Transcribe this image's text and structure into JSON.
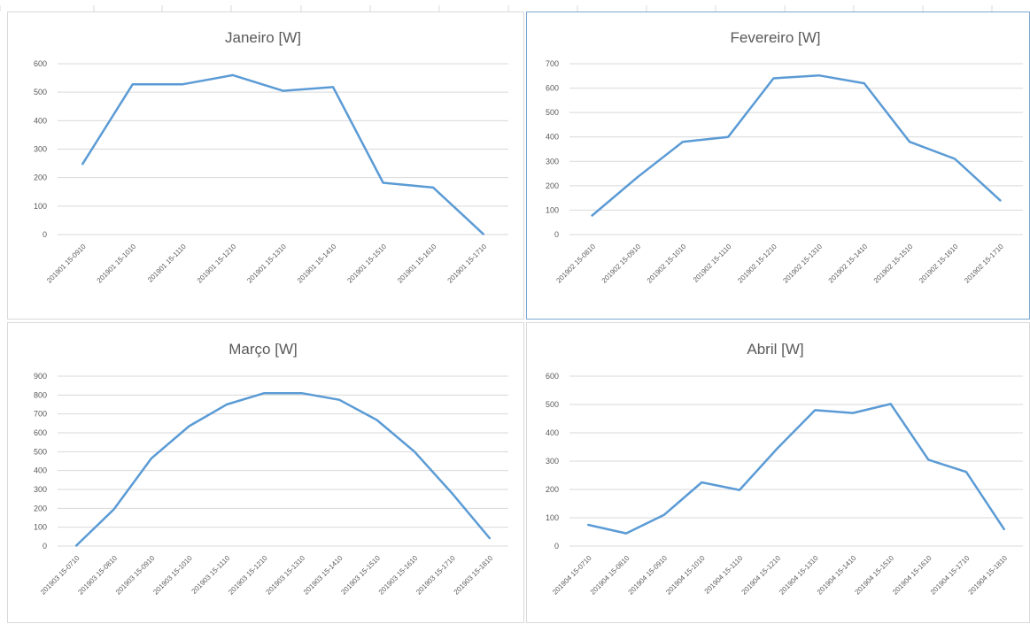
{
  "colors": {
    "line": "#5b9bd5",
    "grid": "#d9d9d9",
    "text": "#595959"
  },
  "chart_data": [
    {
      "type": "line",
      "title": "Janeiro [W]",
      "categories": [
        "201901 15-0910",
        "201901 15-1010",
        "201901 15-1110",
        "201901 15-1210",
        "201901 15-1310",
        "201901 15-1410",
        "201901 15-1510",
        "201901 15-1610",
        "201901 15-1710"
      ],
      "values": [
        248,
        528,
        528,
        560,
        505,
        518,
        182,
        165,
        2
      ],
      "ylim": [
        0,
        600
      ],
      "yticks": [
        0,
        100,
        200,
        300,
        400,
        500,
        600
      ],
      "grid": true
    },
    {
      "type": "line",
      "title": "Fevereiro [W]",
      "categories": [
        "201902 15-0810",
        "201902 15-0910",
        "201902 15-1010",
        "201902 15-1110",
        "201902 15-1210",
        "201902 15-1310",
        "201902 15-1410",
        "201902 15-1510",
        "201902 15-1610",
        "201902 15-1710"
      ],
      "values": [
        78,
        235,
        380,
        400,
        640,
        652,
        620,
        380,
        310,
        140
      ],
      "ylim": [
        0,
        700
      ],
      "yticks": [
        0,
        100,
        200,
        300,
        400,
        500,
        600,
        700
      ],
      "grid": true
    },
    {
      "type": "line",
      "title": "Março [W]",
      "categories": [
        "201903 15-0710",
        "201903 15-0810",
        "201903 15-0910",
        "201903 15-1010",
        "201903 15-1110",
        "201903 15-1210",
        "201903 15-1310",
        "201903 15-1410",
        "201903 15-1510",
        "201903 15-1610",
        "201903 15-1710",
        "201903 15-1810"
      ],
      "values": [
        3,
        195,
        465,
        635,
        750,
        810,
        810,
        775,
        668,
        500,
        280,
        42
      ],
      "ylim": [
        0,
        900
      ],
      "yticks": [
        0,
        100,
        200,
        300,
        400,
        500,
        600,
        700,
        800,
        900
      ],
      "grid": true
    },
    {
      "type": "line",
      "title": "Abril [W]",
      "categories": [
        "201904 15-0710",
        "201904 15-0810",
        "201904 15-0910",
        "201904 15-1010",
        "201904 15-1110",
        "201904 15-1210",
        "201904 15-1310",
        "201904 15-1410",
        "201904 15-1510",
        "201904 15-1610",
        "201904 15-1710",
        "201904 15-1810"
      ],
      "values": [
        75,
        45,
        110,
        225,
        198,
        345,
        480,
        470,
        502,
        305,
        262,
        60
      ],
      "ylim": [
        0,
        600
      ],
      "yticks": [
        0,
        100,
        200,
        300,
        400,
        500,
        600
      ],
      "grid": true
    }
  ]
}
